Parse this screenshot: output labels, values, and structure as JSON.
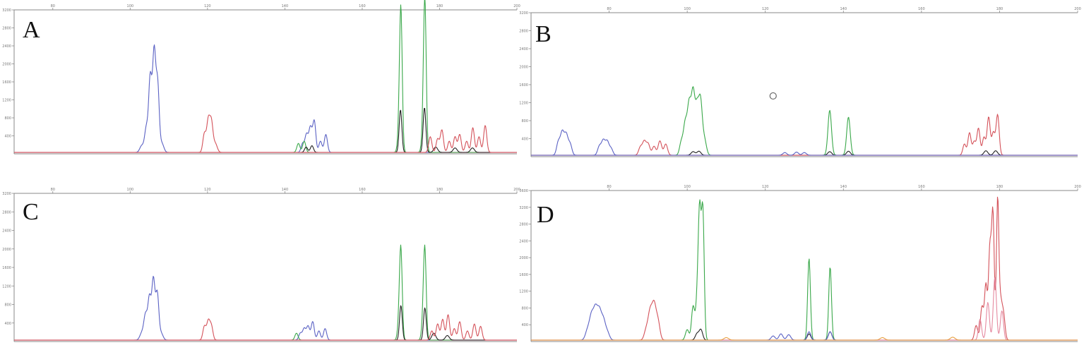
{
  "figure": {
    "panels": [
      {
        "id": "A",
        "label": "A"
      },
      {
        "id": "B",
        "label": "B"
      },
      {
        "id": "C",
        "label": "C"
      },
      {
        "id": "D",
        "label": "D"
      }
    ],
    "colors": {
      "blue": "#5b62c4",
      "red": "#d4525a",
      "green": "#3aa84a",
      "black": "#222222",
      "pink": "#e58aa0",
      "orange": "#e8a040",
      "baseline": "#b74a6a"
    }
  },
  "chart_data": [
    {
      "panel": "A",
      "type": "line",
      "xlim": [
        70,
        200
      ],
      "ylim": [
        0,
        3200
      ],
      "x_ticks": [
        80,
        100,
        120,
        140,
        160,
        180,
        200
      ],
      "y_ticks": [
        400,
        800,
        1200,
        1600,
        2000,
        2400,
        2800,
        3200
      ],
      "series": [
        {
          "color": "blue",
          "peaks": [
            [
              104.2,
              550,
              0.45
            ],
            [
              105.2,
              1650,
              0.4
            ],
            [
              106.2,
              2200,
              0.4
            ],
            [
              107.1,
              1500,
              0.4
            ],
            [
              103.0,
              150,
              0.5
            ],
            [
              108.2,
              200,
              0.5
            ]
          ]
        },
        {
          "color": "red",
          "peaks": [
            [
              119.2,
              420,
              0.4
            ],
            [
              120.2,
              700,
              0.4
            ],
            [
              121.0,
              650,
              0.4
            ],
            [
              122.0,
              200,
              0.5
            ]
          ]
        },
        {
          "color": "blue",
          "peaks": [
            [
              144.6,
              200,
              0.4
            ],
            [
              145.6,
              400,
              0.4
            ],
            [
              146.6,
              550,
              0.4
            ],
            [
              147.6,
              700,
              0.4
            ],
            [
              149.2,
              250,
              0.4
            ],
            [
              150.6,
              400,
              0.4
            ]
          ]
        },
        {
          "color": "green",
          "peaks": [
            [
              143.5,
              200,
              0.4
            ],
            [
              145.0,
              250,
              0.4
            ],
            [
              169.6,
              450,
              0.4
            ],
            [
              170.0,
              3000,
              0.35
            ],
            [
              175.8,
              450,
              0.4
            ],
            [
              176.2,
              3200,
              0.35
            ]
          ]
        },
        {
          "color": "black",
          "peaks": [
            [
              145.5,
              120,
              0.4
            ],
            [
              147.0,
              150,
              0.4
            ],
            [
              169.9,
              950,
              0.35
            ],
            [
              176.1,
              1000,
              0.35
            ],
            [
              179.0,
              120,
              0.5
            ],
            [
              184.0,
              100,
              0.5
            ],
            [
              188.5,
              100,
              0.5
            ]
          ]
        },
        {
          "color": "red",
          "peaks": [
            [
              177.6,
              350,
              0.4
            ],
            [
              179.5,
              300,
              0.4
            ],
            [
              180.6,
              500,
              0.4
            ],
            [
              182.5,
              250,
              0.4
            ],
            [
              184.0,
              350,
              0.4
            ],
            [
              185.2,
              400,
              0.4
            ],
            [
              187.0,
              250,
              0.4
            ],
            [
              188.6,
              550,
              0.4
            ],
            [
              190.2,
              350,
              0.4
            ],
            [
              191.8,
              600,
              0.4
            ]
          ]
        }
      ]
    },
    {
      "panel": "B",
      "type": "line",
      "xlim": [
        60,
        200
      ],
      "ylim": [
        0,
        3200
      ],
      "x_ticks": [
        80,
        100,
        120,
        140,
        160,
        180,
        200
      ],
      "y_ticks": [
        400,
        800,
        1200,
        1600,
        2000,
        2400,
        2800,
        3200
      ],
      "series": [
        {
          "color": "blue",
          "peaks": [
            [
              67.0,
              300,
              0.45
            ],
            [
              68.0,
              500,
              0.45
            ],
            [
              69.0,
              450,
              0.45
            ],
            [
              70.0,
              250,
              0.45
            ],
            [
              77.5,
              200,
              0.45
            ],
            [
              78.5,
              320,
              0.45
            ],
            [
              79.5,
              300,
              0.45
            ],
            [
              80.5,
              150,
              0.45
            ]
          ]
        },
        {
          "color": "red",
          "peaks": [
            [
              88.0,
              180,
              0.45
            ],
            [
              89.0,
              300,
              0.45
            ],
            [
              90.0,
              250,
              0.45
            ],
            [
              91.5,
              200,
              0.45
            ],
            [
              93.0,
              320,
              0.45
            ],
            [
              94.5,
              250,
              0.45
            ]
          ]
        },
        {
          "color": "green",
          "peaks": [
            [
              98.5,
              300,
              0.45
            ],
            [
              99.5,
              700,
              0.45
            ],
            [
              100.5,
              1100,
              0.45
            ],
            [
              101.5,
              1350,
              0.45
            ],
            [
              102.5,
              1000,
              0.45
            ],
            [
              103.4,
              1150,
              0.45
            ],
            [
              104.4,
              350,
              0.5
            ],
            [
              136.5,
              1000,
              0.45
            ],
            [
              141.3,
              850,
              0.45
            ]
          ]
        },
        {
          "color": "black",
          "peaks": [
            [
              101.5,
              80,
              0.5
            ],
            [
              103.0,
              90,
              0.5
            ],
            [
              136.5,
              80,
              0.5
            ],
            [
              141.3,
              90,
              0.5
            ],
            [
              176.5,
              100,
              0.5
            ],
            [
              179.0,
              100,
              0.5
            ]
          ]
        },
        {
          "color": "red",
          "peaks": [
            [
              171.0,
              250,
              0.4
            ],
            [
              172.3,
              500,
              0.4
            ],
            [
              173.5,
              300,
              0.4
            ],
            [
              174.6,
              600,
              0.4
            ],
            [
              176.0,
              400,
              0.4
            ],
            [
              177.2,
              850,
              0.4
            ],
            [
              178.4,
              500,
              0.4
            ],
            [
              179.5,
              900,
              0.4
            ]
          ]
        },
        {
          "color": "blue",
          "peaks": [
            [
              125.0,
              60,
              0.5
            ],
            [
              128.0,
              70,
              0.5
            ],
            [
              130.0,
              60,
              0.5
            ]
          ]
        }
      ],
      "marker": {
        "type": "circle",
        "x": 122.0,
        "y": 1350
      }
    },
    {
      "panel": "C",
      "type": "line",
      "xlim": [
        70,
        200
      ],
      "ylim": [
        0,
        3200
      ],
      "x_ticks": [
        80,
        100,
        120,
        140,
        160,
        180,
        200
      ],
      "y_ticks": [
        400,
        800,
        1200,
        1600,
        2000,
        2400,
        2800,
        3200
      ],
      "series": [
        {
          "color": "blue",
          "peaks": [
            [
              104.0,
              550,
              0.45
            ],
            [
              105.0,
              900,
              0.4
            ],
            [
              106.0,
              1300,
              0.4
            ],
            [
              107.0,
              1000,
              0.4
            ],
            [
              103.0,
              150,
              0.5
            ],
            [
              108.0,
              150,
              0.5
            ]
          ]
        },
        {
          "color": "red",
          "peaks": [
            [
              119.2,
              300,
              0.4
            ],
            [
              120.2,
              400,
              0.4
            ],
            [
              121.0,
              300,
              0.4
            ]
          ]
        },
        {
          "color": "blue",
          "peaks": [
            [
              144.0,
              150,
              0.4
            ],
            [
              145.0,
              250,
              0.4
            ],
            [
              146.0,
              300,
              0.4
            ],
            [
              147.2,
              400,
              0.4
            ],
            [
              148.8,
              200,
              0.4
            ],
            [
              150.4,
              250,
              0.4
            ]
          ]
        },
        {
          "color": "green",
          "peaks": [
            [
              143.0,
              150,
              0.4
            ],
            [
              169.6,
              400,
              0.4
            ],
            [
              170.0,
              1800,
              0.35
            ],
            [
              175.8,
              400,
              0.4
            ],
            [
              176.2,
              1800,
              0.35
            ]
          ]
        },
        {
          "color": "black",
          "peaks": [
            [
              170.0,
              750,
              0.35
            ],
            [
              176.2,
              700,
              0.35
            ],
            [
              178.5,
              150,
              0.5
            ],
            [
              182.0,
              100,
              0.5
            ]
          ]
        },
        {
          "color": "red",
          "peaks": [
            [
              178.0,
              200,
              0.4
            ],
            [
              179.5,
              350,
              0.4
            ],
            [
              180.8,
              450,
              0.4
            ],
            [
              182.2,
              550,
              0.4
            ],
            [
              183.8,
              250,
              0.4
            ],
            [
              185.2,
              400,
              0.4
            ],
            [
              187.2,
              200,
              0.4
            ],
            [
              189.0,
              350,
              0.4
            ],
            [
              190.6,
              300,
              0.4
            ]
          ]
        }
      ]
    },
    {
      "panel": "D",
      "type": "line",
      "xlim": [
        60,
        200
      ],
      "ylim": [
        0,
        3600
      ],
      "x_ticks": [
        80,
        100,
        120,
        140,
        160,
        180,
        200
      ],
      "y_ticks": [
        400,
        800,
        1200,
        1600,
        2000,
        2400,
        2800,
        3200,
        3600
      ],
      "series": [
        {
          "color": "blue",
          "peaks": [
            [
              74.5,
              250,
              0.55
            ],
            [
              75.5,
              550,
              0.5
            ],
            [
              76.5,
              700,
              0.5
            ],
            [
              77.5,
              650,
              0.5
            ],
            [
              78.5,
              450,
              0.5
            ],
            [
              79.5,
              200,
              0.55
            ]
          ]
        },
        {
          "color": "red",
          "peaks": [
            [
              89.5,
              250,
              0.5
            ],
            [
              90.5,
              650,
              0.5
            ],
            [
              91.5,
              800,
              0.5
            ],
            [
              92.5,
              450,
              0.5
            ]
          ]
        },
        {
          "color": "green",
          "peaks": [
            [
              100.0,
              250,
              0.45
            ],
            [
              101.5,
              800,
              0.4
            ],
            [
              102.6,
              1000,
              0.4
            ],
            [
              103.2,
              2800,
              0.35
            ],
            [
              104.0,
              3050,
              0.35
            ],
            [
              131.2,
              1950,
              0.35
            ],
            [
              136.6,
              1750,
              0.35
            ]
          ]
        },
        {
          "color": "black",
          "peaks": [
            [
              102.5,
              150,
              0.45
            ],
            [
              103.5,
              250,
              0.45
            ],
            [
              131.2,
              150,
              0.45
            ],
            [
              136.6,
              200,
              0.45
            ]
          ]
        },
        {
          "color": "blue",
          "peaks": [
            [
              122.0,
              100,
              0.5
            ],
            [
              124.0,
              150,
              0.5
            ],
            [
              126.0,
              130,
              0.5
            ],
            [
              131.2,
              200,
              0.45
            ],
            [
              136.6,
              200,
              0.45
            ]
          ]
        },
        {
          "color": "red",
          "peaks": [
            [
              174.0,
              350,
              0.4
            ],
            [
              175.5,
              800,
              0.4
            ],
            [
              176.5,
              1300,
              0.35
            ],
            [
              177.5,
              2100,
              0.35
            ],
            [
              178.3,
              3000,
              0.35
            ],
            [
              179.5,
              3250,
              0.3
            ],
            [
              180.2,
              900,
              0.4
            ],
            [
              181.0,
              600,
              0.4
            ]
          ]
        },
        {
          "color": "pink",
          "peaks": [
            [
              175.0,
              500,
              0.4
            ],
            [
              177.0,
              900,
              0.4
            ],
            [
              178.8,
              1500,
              0.4
            ],
            [
              180.6,
              700,
              0.4
            ]
          ]
        },
        {
          "color": "orange",
          "peaks": [
            [
              110.0,
              60,
              0.6
            ],
            [
              150.0,
              60,
              0.6
            ],
            [
              168.0,
              70,
              0.6
            ]
          ]
        }
      ]
    }
  ]
}
